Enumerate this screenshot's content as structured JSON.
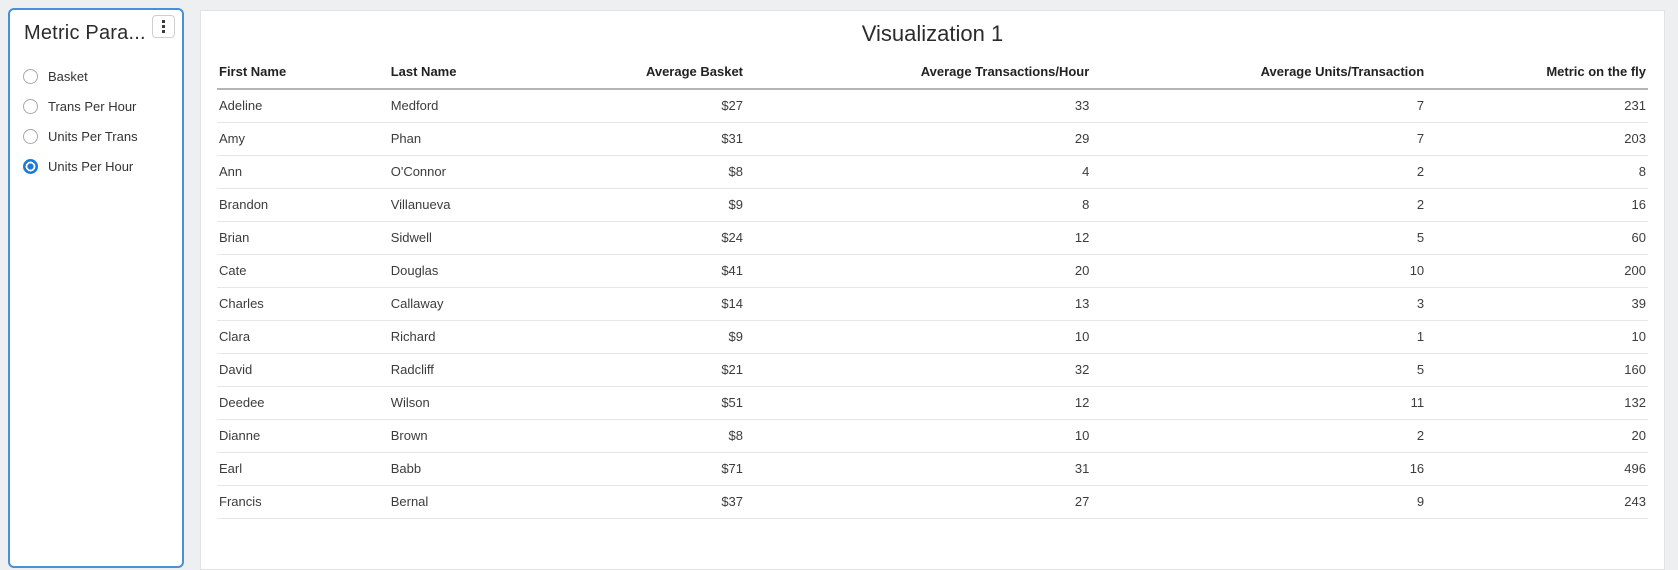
{
  "colors": {
    "page_bg": "#edeff1",
    "panel_border_accent": "#4a90d8",
    "radio_selected_accent": "#1e78d8",
    "header_rule": "#b5b5b5",
    "row_divider": "#e6e6e6"
  },
  "panel": {
    "title": "Metric Para...",
    "menu_icon": "kebab-menu-icon",
    "options": [
      {
        "label": "Basket",
        "selected": false
      },
      {
        "label": "Trans Per Hour",
        "selected": false
      },
      {
        "label": "Units Per Trans",
        "selected": false
      },
      {
        "label": "Units Per Hour",
        "selected": true
      }
    ]
  },
  "visualization": {
    "title": "Visualization 1",
    "columns": [
      {
        "label": "First Name",
        "align": "left"
      },
      {
        "label": "Last Name",
        "align": "left"
      },
      {
        "label": "Average Basket",
        "align": "right"
      },
      {
        "label": "Average Transactions/Hour",
        "align": "right"
      },
      {
        "label": "Average Units/Transaction",
        "align": "right"
      },
      {
        "label": "Metric on the fly",
        "align": "right"
      }
    ],
    "column_widths_pct": [
      12.0,
      11.9,
      13.0,
      24.2,
      23.4,
      15.5
    ],
    "rows": [
      [
        "Adeline",
        "Medford",
        "$27",
        "33",
        "7",
        "231"
      ],
      [
        "Amy",
        "Phan",
        "$31",
        "29",
        "7",
        "203"
      ],
      [
        "Ann",
        "O'Connor",
        "$8",
        "4",
        "2",
        "8"
      ],
      [
        "Brandon",
        "Villanueva",
        "$9",
        "8",
        "2",
        "16"
      ],
      [
        "Brian",
        "Sidwell",
        "$24",
        "12",
        "5",
        "60"
      ],
      [
        "Cate",
        "Douglas",
        "$41",
        "20",
        "10",
        "200"
      ],
      [
        "Charles",
        "Callaway",
        "$14",
        "13",
        "3",
        "39"
      ],
      [
        "Clara",
        "Richard",
        "$9",
        "10",
        "1",
        "10"
      ],
      [
        "David",
        "Radcliff",
        "$21",
        "32",
        "5",
        "160"
      ],
      [
        "Deedee",
        "Wilson",
        "$51",
        "12",
        "11",
        "132"
      ],
      [
        "Dianne",
        "Brown",
        "$8",
        "10",
        "2",
        "20"
      ],
      [
        "Earl",
        "Babb",
        "$71",
        "31",
        "16",
        "496"
      ],
      [
        "Francis",
        "Bernal",
        "$37",
        "27",
        "9",
        "243"
      ]
    ]
  }
}
